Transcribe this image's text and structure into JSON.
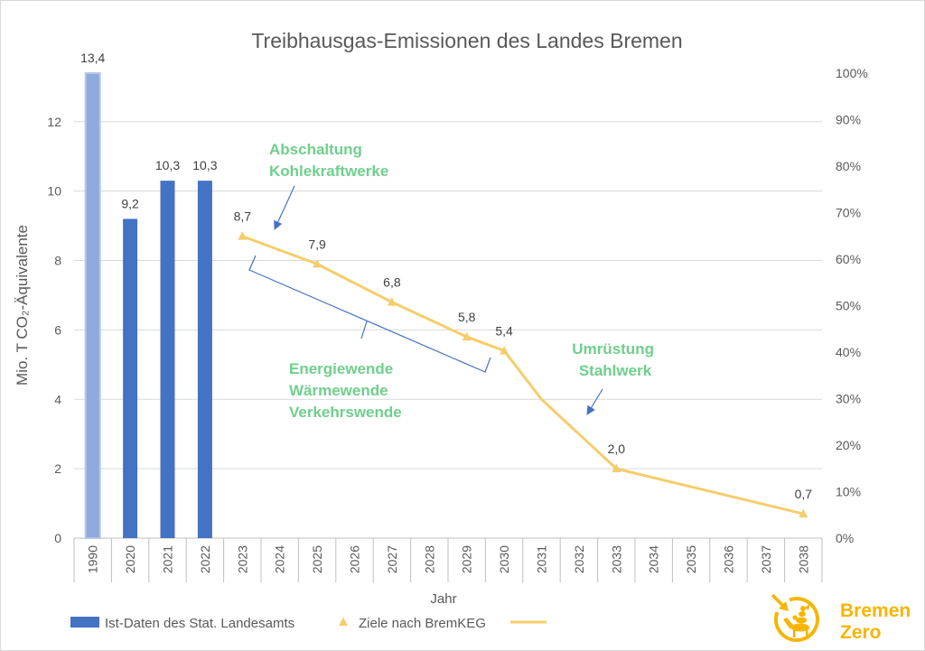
{
  "chart_data": {
    "type": "bar",
    "title": "Treibhausgas-Emissionen des Landes Bremen",
    "xlabel": "Jahr",
    "ylabel": "Mio. T CO₂-Äquivalente",
    "categories": [
      "1990",
      "2020",
      "2021",
      "2022",
      "2023",
      "2024",
      "2025",
      "2026",
      "2027",
      "2028",
      "2029",
      "2030",
      "2031",
      "2032",
      "2033",
      "2034",
      "2035",
      "2036",
      "2037",
      "2038"
    ],
    "ylim": [
      0,
      13.4
    ],
    "yticks": [
      0,
      2,
      4,
      6,
      8,
      10,
      12
    ],
    "y2lim": [
      0,
      100
    ],
    "y2ticks": [
      0,
      10,
      20,
      30,
      40,
      50,
      60,
      70,
      80,
      90,
      100
    ],
    "y2tick_labels": [
      "0%",
      "10%",
      "20%",
      "30%",
      "40%",
      "50%",
      "60%",
      "70%",
      "80%",
      "90%",
      "100%"
    ],
    "grid": "horizontal",
    "legend_position": "bottom-left",
    "series": [
      {
        "name": "Ist-Daten des Stat. Landesamts",
        "type": "bar",
        "color": "#4472c4",
        "points": [
          {
            "x": 1990,
            "y": 13.4,
            "label": "13,4",
            "fill": "#8faadc",
            "border": "#b4c7e7"
          },
          {
            "x": 2020,
            "y": 9.2,
            "label": "9,2"
          },
          {
            "x": 2021,
            "y": 10.3,
            "label": "10,3"
          },
          {
            "x": 2022,
            "y": 10.3,
            "label": "10,3"
          }
        ]
      },
      {
        "name": "Ziele nach BremKEG",
        "type": "scatter",
        "marker": "triangle",
        "color": "#f5cd6b",
        "points": [
          {
            "x": 2023,
            "y": 8.7,
            "label": "8,7"
          },
          {
            "x": 2025,
            "y": 7.9,
            "label": "7,9"
          },
          {
            "x": 2027,
            "y": 6.8,
            "label": "6,8"
          },
          {
            "x": 2029,
            "y": 5.8,
            "label": "5,8"
          },
          {
            "x": 2030,
            "y": 5.4,
            "label": "5,4"
          },
          {
            "x": 2033,
            "y": 2.0,
            "label": "2,0"
          },
          {
            "x": 2038,
            "y": 0.7,
            "label": "0,7"
          }
        ]
      },
      {
        "type": "line",
        "color": "#f5cd6b",
        "points": [
          {
            "x": 2023,
            "y": 8.7
          },
          {
            "x": 2025,
            "y": 7.9
          },
          {
            "x": 2027,
            "y": 6.8
          },
          {
            "x": 2029,
            "y": 5.8
          },
          {
            "x": 2030,
            "y": 5.4
          },
          {
            "x": 2031,
            "y": 4.0
          },
          {
            "x": 2032,
            "y": 3.0
          },
          {
            "x": 2033,
            "y": 2.0
          },
          {
            "x": 2038,
            "y": 0.7
          }
        ]
      }
    ],
    "annotations": [
      {
        "lines": [
          "Abschaltung",
          "Kohlekraftwerke"
        ]
      },
      {
        "lines": [
          "Energiewende",
          "Wärmewende",
          "Verkehrswende"
        ]
      },
      {
        "lines": [
          "Umrüstung",
          "Stahlwerk"
        ]
      }
    ]
  },
  "colors": {
    "annotation_text": "#6fcf8c",
    "annotation_arrow": "#4472c4",
    "logo": "#f7b500"
  },
  "logo": {
    "icon": "bremen-zero-icon",
    "line1": "Bremen",
    "line2": "Zero"
  }
}
